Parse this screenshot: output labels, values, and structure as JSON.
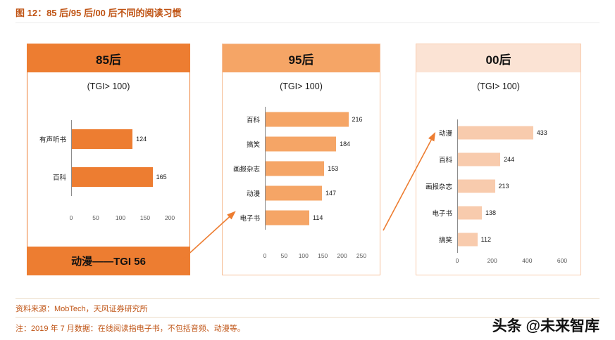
{
  "title": "图 12：85 后/95 后/00 后不同的阅读习惯",
  "footer": {
    "source": "资料来源：MobTech，天风证券研究所",
    "note": "注：2019 年 7 月数据：在线阅读指电子书，不包括音频、动漫等。",
    "watermark": "头条 @未来智库"
  },
  "colors": {
    "accent": "#ED7D31",
    "accent_mid": "#F5A566",
    "accent_light": "#F8CBAD",
    "accent_pale": "#FBE3D4",
    "title_text": "#BF5212",
    "tick_text": "#595959"
  },
  "chart_data": [
    {
      "type": "bar",
      "orientation": "horizontal",
      "title": "85后",
      "subtitle": "(TGI> 100)",
      "categories": [
        "有声听书",
        "百科"
      ],
      "values": [
        124,
        165
      ],
      "xlabel": "",
      "ylabel": "",
      "xlim": [
        0,
        200
      ],
      "xticks": [
        0,
        50,
        100,
        150,
        200
      ],
      "callout": "动漫——TGI 56",
      "header_color": "#ED7D31",
      "bar_color": "#ED7D31",
      "border_color": "#ED7D31"
    },
    {
      "type": "bar",
      "orientation": "horizontal",
      "title": "95后",
      "subtitle": "(TGI> 100)",
      "categories": [
        "百科",
        "搞笑",
        "画报杂志",
        "动漫",
        "电子书"
      ],
      "values": [
        216,
        184,
        153,
        147,
        114
      ],
      "xlabel": "",
      "ylabel": "",
      "xlim": [
        0,
        250
      ],
      "xticks": [
        0,
        50,
        100,
        150,
        200,
        250
      ],
      "header_color": "#F5A566",
      "bar_color": "#F5A566",
      "border_color": "#F6C09A"
    },
    {
      "type": "bar",
      "orientation": "horizontal",
      "title": "00后",
      "subtitle": "(TGI> 100)",
      "categories": [
        "动漫",
        "百科",
        "画报杂志",
        "电子书",
        "搞笑"
      ],
      "values": [
        433,
        244,
        213,
        138,
        112
      ],
      "xlabel": "",
      "ylabel": "",
      "xlim": [
        0,
        600
      ],
      "xticks": [
        0,
        200,
        400,
        600
      ],
      "header_color": "#FBE3D4",
      "bar_color": "#F8CBAD",
      "border_color": "#F8CBAD"
    }
  ]
}
